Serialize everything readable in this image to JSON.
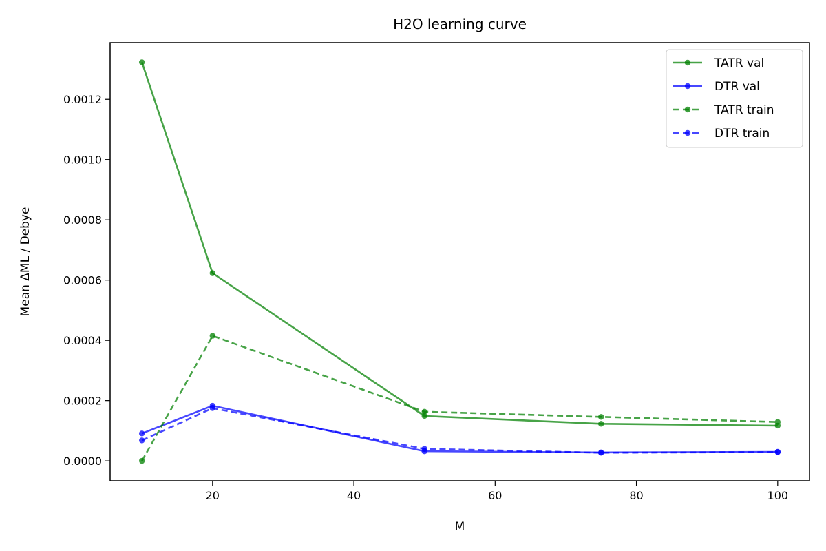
{
  "chart_data": {
    "type": "line",
    "title": "H2O learning curve",
    "xlabel": "M",
    "ylabel": "Mean ΔML / Debye",
    "xlim": [
      5.5,
      104.5
    ],
    "ylim": [
      -6.6e-05,
      0.001388
    ],
    "xticks": [
      20,
      40,
      60,
      80,
      100
    ],
    "yticks": [
      0.0,
      0.0002,
      0.0004,
      0.0006,
      0.0008,
      0.001,
      0.0012
    ],
    "xtick_labels": [
      "20",
      "40",
      "60",
      "80",
      "100"
    ],
    "ytick_labels": [
      "0.0000",
      "0.0002",
      "0.0004",
      "0.0006",
      "0.0008",
      "0.0010",
      "0.0012"
    ],
    "legend_position": "top-right",
    "series": [
      {
        "name": "TATR val",
        "color": "#008000",
        "style": "solid",
        "x": [
          10,
          20,
          50,
          75,
          100
        ],
        "values": [
          0.001323,
          0.000623,
          0.000149,
          0.000123,
          0.000117
        ]
      },
      {
        "name": "DTR val",
        "color": "#0000ff",
        "style": "solid",
        "x": [
          10,
          20,
          50,
          75,
          100
        ],
        "values": [
          9.1e-05,
          0.000183,
          3.2e-05,
          2.8e-05,
          3e-05
        ]
      },
      {
        "name": "TATR train",
        "color": "#008000",
        "style": "dashed",
        "x": [
          10,
          20,
          50,
          75,
          100
        ],
        "values": [
          0.0,
          0.000415,
          0.000163,
          0.000146,
          0.000129
        ]
      },
      {
        "name": "DTR train",
        "color": "#0000ff",
        "style": "dashed",
        "x": [
          10,
          20,
          50,
          75,
          100
        ],
        "values": [
          6.8e-05,
          0.000175,
          4e-05,
          2.7e-05,
          2.9e-05
        ]
      }
    ]
  }
}
